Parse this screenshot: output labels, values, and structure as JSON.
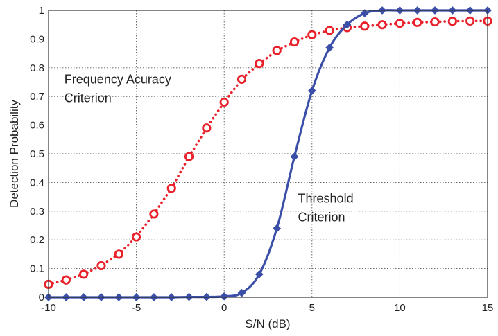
{
  "chart_data": {
    "type": "line",
    "title": "",
    "xlabel": "S/N (dB)",
    "ylabel": "Detection Probability",
    "xlim": [
      -10,
      15
    ],
    "ylim": [
      0,
      1
    ],
    "xticks": [
      -10,
      -5,
      0,
      5,
      10,
      15
    ],
    "xtick_labels": [
      "-10",
      "-5",
      "0",
      "5",
      "10",
      "15"
    ],
    "yticks": [
      0,
      0.1,
      0.2,
      0.3,
      0.4,
      0.5,
      0.6,
      0.7,
      0.8,
      0.9,
      1
    ],
    "ytick_labels": [
      "0",
      "0.1",
      "0.2",
      "0.3",
      "0.4",
      "0.5",
      "0.6",
      "0.7",
      "0.8",
      "0.9",
      "1"
    ],
    "grid": true,
    "x": [
      -10,
      -9,
      -8,
      -7,
      -6,
      -5,
      -4,
      -3,
      -2,
      -1,
      0,
      1,
      2,
      3,
      4,
      5,
      6,
      7,
      8,
      9,
      10,
      11,
      12,
      13,
      14,
      15
    ],
    "series": [
      {
        "name": "Frequency Acuracy Criterion",
        "color": "#e8212b",
        "line_style": "dotted",
        "marker": "open-circle",
        "values": [
          0.045,
          0.06,
          0.08,
          0.11,
          0.15,
          0.21,
          0.29,
          0.38,
          0.49,
          0.59,
          0.68,
          0.76,
          0.815,
          0.86,
          0.89,
          0.915,
          0.93,
          0.94,
          0.945,
          0.95,
          0.955,
          0.958,
          0.96,
          0.962,
          0.963,
          0.963
        ]
      },
      {
        "name": "Threshold Criterion",
        "color": "#3b4fa8",
        "line_style": "solid",
        "marker": "filled-diamond",
        "values": [
          0.0,
          0.0,
          0.0,
          0.0,
          0.0,
          0.0,
          0.0,
          0.0,
          0.001,
          0.001,
          0.003,
          0.015,
          0.08,
          0.24,
          0.49,
          0.72,
          0.87,
          0.95,
          0.99,
          1.0,
          1.0,
          1.0,
          1.0,
          1.0,
          1.0,
          1.0
        ]
      }
    ],
    "annotations": [
      {
        "lines": [
          "Frequency Acuracy",
          "Criterion"
        ],
        "x": -9.1,
        "y": 0.745
      },
      {
        "lines": [
          "Threshold",
          "Criterion"
        ],
        "x": 4.2,
        "y": 0.33
      }
    ]
  }
}
